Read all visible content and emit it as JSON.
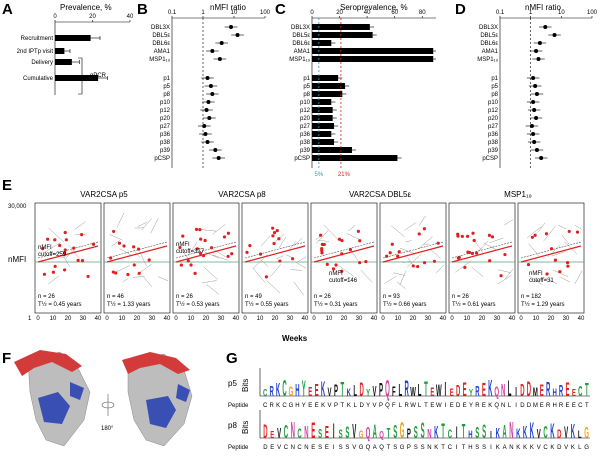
{
  "figure": {
    "panels": [
      "A",
      "B",
      "C",
      "D",
      "E",
      "F",
      "G"
    ]
  },
  "panelA": {
    "title": "Prevalence, %",
    "method_label": "qPCR",
    "chart_data": {
      "type": "bar",
      "categories": [
        "Recruitment",
        "2nd IPTp visit",
        "Delivery",
        "Cumulative"
      ],
      "values": [
        19,
        5,
        9,
        23
      ],
      "errors": [
        5,
        3,
        4,
        5
      ],
      "xlim": [
        0,
        40
      ],
      "xticks": [
        "0",
        "20",
        "40"
      ]
    }
  },
  "panelB": {
    "title": "nMFI ratio",
    "xticks": [
      "0.1",
      "1",
      "10",
      "100"
    ],
    "chart_data": {
      "type": "scatter",
      "xscale": "log",
      "xlim": [
        0.1,
        100
      ],
      "categories": [
        "DBL3X",
        "DBL5ε",
        "DBL6ε",
        "AMA1",
        "MSP1₁₉",
        "p1",
        "p5",
        "p8",
        "p10",
        "p12",
        "p20",
        "p27",
        "p36",
        "p38",
        "p39",
        "pCSP"
      ],
      "values": [
        8,
        13,
        4,
        2,
        3.5,
        1.4,
        1.8,
        2.0,
        1.5,
        1.3,
        1.6,
        1.1,
        1.2,
        1.4,
        2.5,
        3.2
      ]
    }
  },
  "panelC": {
    "title": "Seroprevalence, %",
    "xticks": [
      "0",
      "20",
      "40",
      "60",
      "80"
    ],
    "ref_labels": [
      "5%",
      "21%"
    ],
    "chart_data": {
      "type": "bar",
      "categories": [
        "DBL3X",
        "DBL5ε",
        "DBL6ε",
        "AMA1",
        "MSP1₁₉",
        "p1",
        "p5",
        "p8",
        "p10",
        "p12",
        "p20",
        "p27",
        "p36",
        "p38",
        "p39",
        "pCSP"
      ],
      "values": [
        42,
        44,
        14,
        88,
        88,
        19,
        24,
        22,
        14,
        15,
        15,
        16,
        14,
        16,
        29,
        62
      ],
      "xlim": [
        0,
        90
      ]
    }
  },
  "panelD": {
    "title": "nMFI ratio",
    "xticks": [
      "0.1",
      "1",
      "10",
      "100"
    ],
    "chart_data": {
      "type": "scatter",
      "xscale": "log",
      "xlim": [
        0.1,
        100
      ],
      "categories": [
        "DBL3X",
        "DBL5ε",
        "DBL6ε",
        "AMA1",
        "MSP1₁₉",
        "p1",
        "p5",
        "p8",
        "p10",
        "p12",
        "p20",
        "p27",
        "p36",
        "p38",
        "p39",
        "pCSP"
      ],
      "values": [
        3,
        6,
        2,
        1.5,
        1.8,
        1.2,
        1.4,
        1.6,
        1.2,
        1.3,
        1.5,
        1.1,
        1.2,
        1.3,
        1.6,
        2.2
      ]
    }
  },
  "panelE": {
    "ylabel": "nMFI",
    "xlabel": "Weeks",
    "yticks": [
      "1",
      "30,000"
    ],
    "xticks": [
      "0",
      "10",
      "20",
      "30",
      "40"
    ],
    "groups": [
      {
        "title": "VAR2CSA p5",
        "cutoff": "nMFI cutoff=259",
        "sub": [
          {
            "n": "n = 26",
            "half": "T½ = 0.45 years"
          },
          {
            "n": "n = 46",
            "half": "T½ = 1.33 years"
          }
        ]
      },
      {
        "title": "VAR2CSA p8",
        "cutoff": "nMFI cutoff=377",
        "sub": [
          {
            "n": "n = 26",
            "half": "T½ = 0.53 years"
          },
          {
            "n": "n = 49",
            "half": "T½ = 0.55 years"
          }
        ]
      },
      {
        "title": "VAR2CSA DBL5ε",
        "cutoff": "nMFI cutoff=146",
        "sub": [
          {
            "n": "n = 26",
            "half": "T½ = 0.31 years"
          },
          {
            "n": "n = 93",
            "half": "T½ = 0.66 years"
          }
        ]
      },
      {
        "title": "MSP1₁₉",
        "cutoff": "nMFI cutoff=31",
        "sub": [
          {
            "n": "n = 26",
            "half": "T½ = 0.61 years"
          },
          {
            "n": "n = 182",
            "half": "T½ = 1.29 years"
          }
        ]
      }
    ]
  },
  "panelF": {
    "rotation": "180°"
  },
  "panelG": {
    "ylabel": "Bits",
    "peptide_label": "Peptide",
    "rows": [
      {
        "name": "p5",
        "sequence": "CRKCGHYEEKVPTKLDYVPQFLRWLTEWIEDEYREKQNLIDDMERHREECT"
      },
      {
        "name": "p8",
        "sequence": "DEVCNCNESEISSVGQAQTSGPSSNKTCITHSSIKANKKKVCKDVKLG"
      }
    ]
  }
}
